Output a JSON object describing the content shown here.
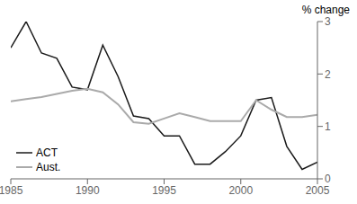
{
  "chart_data": {
    "type": "line",
    "ylabel": "% change",
    "x": [
      1985,
      1986,
      1987,
      1988,
      1989,
      1990,
      1991,
      1992,
      1993,
      1994,
      1995,
      1996,
      1997,
      1998,
      1999,
      2000,
      2001,
      2002,
      2003,
      2004,
      2005
    ],
    "series": [
      {
        "name": "ACT",
        "color": "#1a1a1a",
        "values": [
          2.5,
          3.0,
          2.4,
          2.3,
          1.75,
          1.7,
          2.55,
          1.95,
          1.2,
          1.15,
          0.82,
          0.82,
          0.28,
          0.28,
          0.52,
          0.82,
          1.5,
          1.55,
          0.62,
          0.18,
          0.32
        ]
      },
      {
        "name": "Aust.",
        "color": "#aaaaaa",
        "values": [
          1.48,
          1.52,
          1.56,
          1.62,
          1.68,
          1.72,
          1.65,
          1.42,
          1.08,
          1.05,
          1.15,
          1.25,
          1.18,
          1.1,
          1.1,
          1.1,
          1.5,
          1.32,
          1.18,
          1.18,
          1.22
        ]
      }
    ],
    "xlim": [
      1985,
      2005
    ],
    "ylim": [
      0,
      3
    ],
    "xticks": [
      1985,
      1990,
      1995,
      2000,
      2005
    ],
    "yticks": [
      0,
      1,
      2,
      3
    ],
    "grid": false,
    "legend": "lower left"
  }
}
